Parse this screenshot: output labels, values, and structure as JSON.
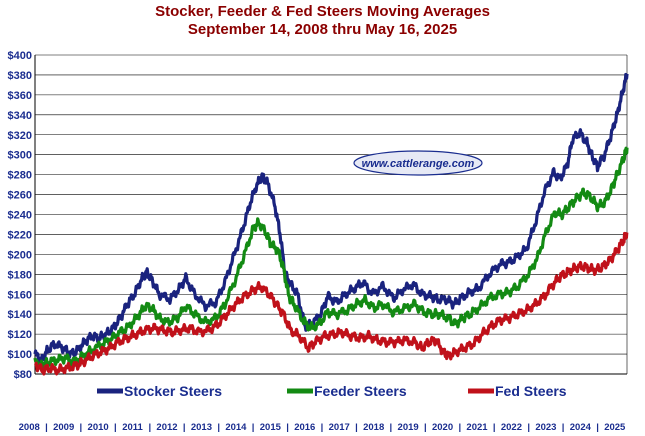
{
  "chart_data": {
    "type": "line",
    "title": "Stocker, Feeder & Fed Steers Moving Averages",
    "subtitle": "September 14, 2008 thru May 16, 2025",
    "watermark": "www.cattlerange.com",
    "ylim": [
      80,
      400
    ],
    "y_ticks": [
      "$80",
      "$100",
      "$120",
      "$140",
      "$160",
      "$180",
      "$200",
      "$220",
      "$240",
      "$260",
      "$280",
      "$300",
      "$320",
      "$340",
      "$360",
      "$380",
      "$400"
    ],
    "x_tick_labels": [
      "2008",
      "2009",
      "2010",
      "2011",
      "2012",
      "2013",
      "2014",
      "2015",
      "2016",
      "2017",
      "2018",
      "2019",
      "2020",
      "2021",
      "2022",
      "2023",
      "2024",
      "2025"
    ],
    "x_range": [
      2008.7,
      2025.38
    ],
    "grid": true,
    "legend_position": "bottom",
    "series": [
      {
        "name": "Stocker Steers",
        "color": "#1a237e",
        "points": [
          [
            2008.7,
            100
          ],
          [
            2008.9,
            94
          ],
          [
            2009.05,
            104
          ],
          [
            2009.25,
            110
          ],
          [
            2009.5,
            106
          ],
          [
            2009.7,
            100
          ],
          [
            2009.9,
            104
          ],
          [
            2010.1,
            112
          ],
          [
            2010.3,
            118
          ],
          [
            2010.5,
            116
          ],
          [
            2010.7,
            120
          ],
          [
            2010.9,
            126
          ],
          [
            2011.1,
            136
          ],
          [
            2011.3,
            150
          ],
          [
            2011.5,
            160
          ],
          [
            2011.7,
            175
          ],
          [
            2011.85,
            182
          ],
          [
            2012.0,
            174
          ],
          [
            2012.2,
            160
          ],
          [
            2012.5,
            155
          ],
          [
            2012.75,
            165
          ],
          [
            2012.95,
            176
          ],
          [
            2013.2,
            160
          ],
          [
            2013.5,
            148
          ],
          [
            2013.8,
            152
          ],
          [
            2014.05,
            172
          ],
          [
            2014.3,
            198
          ],
          [
            2014.55,
            225
          ],
          [
            2014.75,
            250
          ],
          [
            2014.95,
            270
          ],
          [
            2015.1,
            278
          ],
          [
            2015.25,
            272
          ],
          [
            2015.45,
            250
          ],
          [
            2015.6,
            222
          ],
          [
            2015.75,
            180
          ],
          [
            2015.9,
            170
          ],
          [
            2016.1,
            160
          ],
          [
            2016.3,
            128
          ],
          [
            2016.5,
            130
          ],
          [
            2016.75,
            140
          ],
          [
            2016.95,
            158
          ],
          [
            2017.2,
            152
          ],
          [
            2017.45,
            160
          ],
          [
            2017.7,
            166
          ],
          [
            2017.95,
            172
          ],
          [
            2018.2,
            160
          ],
          [
            2018.5,
            168
          ],
          [
            2018.8,
            156
          ],
          [
            2019.05,
            164
          ],
          [
            2019.35,
            170
          ],
          [
            2019.6,
            160
          ],
          [
            2019.85,
            158
          ],
          [
            2020.05,
            155
          ],
          [
            2020.3,
            155
          ],
          [
            2020.5,
            150
          ],
          [
            2020.7,
            156
          ],
          [
            2020.95,
            162
          ],
          [
            2021.2,
            166
          ],
          [
            2021.5,
            180
          ],
          [
            2021.8,
            190
          ],
          [
            2022.05,
            192
          ],
          [
            2022.3,
            198
          ],
          [
            2022.55,
            206
          ],
          [
            2022.8,
            232
          ],
          [
            2023.05,
            262
          ],
          [
            2023.3,
            282
          ],
          [
            2023.5,
            276
          ],
          [
            2023.7,
            290
          ],
          [
            2023.85,
            316
          ],
          [
            2024.05,
            322
          ],
          [
            2024.25,
            312
          ],
          [
            2024.4,
            298
          ],
          [
            2024.55,
            288
          ],
          [
            2024.75,
            300
          ],
          [
            2024.95,
            322
          ],
          [
            2025.1,
            340
          ],
          [
            2025.25,
            362
          ],
          [
            2025.38,
            381
          ]
        ]
      },
      {
        "name": "Feeder Steers",
        "color": "#138a13",
        "points": [
          [
            2008.7,
            92
          ],
          [
            2008.9,
            88
          ],
          [
            2009.05,
            92
          ],
          [
            2009.3,
            94
          ],
          [
            2009.55,
            96
          ],
          [
            2009.8,
            92
          ],
          [
            2010.05,
            98
          ],
          [
            2010.3,
            104
          ],
          [
            2010.6,
            110
          ],
          [
            2010.85,
            115
          ],
          [
            2011.1,
            122
          ],
          [
            2011.35,
            128
          ],
          [
            2011.6,
            138
          ],
          [
            2011.8,
            148
          ],
          [
            2012.0,
            146
          ],
          [
            2012.2,
            136
          ],
          [
            2012.45,
            132
          ],
          [
            2012.7,
            136
          ],
          [
            2012.95,
            148
          ],
          [
            2013.2,
            140
          ],
          [
            2013.5,
            132
          ],
          [
            2013.8,
            136
          ],
          [
            2014.05,
            150
          ],
          [
            2014.35,
            175
          ],
          [
            2014.6,
            200
          ],
          [
            2014.85,
            226
          ],
          [
            2015.0,
            232
          ],
          [
            2015.2,
            222
          ],
          [
            2015.35,
            210
          ],
          [
            2015.55,
            204
          ],
          [
            2015.7,
            186
          ],
          [
            2015.85,
            158
          ],
          [
            2016.0,
            150
          ],
          [
            2016.25,
            134
          ],
          [
            2016.45,
            126
          ],
          [
            2016.7,
            130
          ],
          [
            2016.95,
            142
          ],
          [
            2017.2,
            140
          ],
          [
            2017.5,
            144
          ],
          [
            2017.75,
            150
          ],
          [
            2018.0,
            154
          ],
          [
            2018.25,
            146
          ],
          [
            2018.5,
            150
          ],
          [
            2018.8,
            142
          ],
          [
            2019.1,
            146
          ],
          [
            2019.4,
            150
          ],
          [
            2019.65,
            142
          ],
          [
            2019.9,
            140
          ],
          [
            2020.1,
            140
          ],
          [
            2020.35,
            136
          ],
          [
            2020.55,
            130
          ],
          [
            2020.75,
            136
          ],
          [
            2020.95,
            140
          ],
          [
            2021.2,
            146
          ],
          [
            2021.5,
            156
          ],
          [
            2021.8,
            160
          ],
          [
            2022.05,
            162
          ],
          [
            2022.3,
            168
          ],
          [
            2022.6,
            180
          ],
          [
            2022.85,
            196
          ],
          [
            2023.1,
            222
          ],
          [
            2023.35,
            242
          ],
          [
            2023.55,
            240
          ],
          [
            2023.75,
            248
          ],
          [
            2023.95,
            256
          ],
          [
            2024.15,
            262
          ],
          [
            2024.35,
            258
          ],
          [
            2024.55,
            248
          ],
          [
            2024.75,
            252
          ],
          [
            2024.95,
            266
          ],
          [
            2025.1,
            280
          ],
          [
            2025.28,
            296
          ],
          [
            2025.38,
            307
          ]
        ]
      },
      {
        "name": "Fed Steers",
        "color": "#c0111a",
        "points": [
          [
            2008.7,
            90
          ],
          [
            2008.9,
            84
          ],
          [
            2009.1,
            86
          ],
          [
            2009.35,
            84
          ],
          [
            2009.6,
            86
          ],
          [
            2009.85,
            88
          ],
          [
            2010.05,
            92
          ],
          [
            2010.3,
            98
          ],
          [
            2010.55,
            102
          ],
          [
            2010.8,
            106
          ],
          [
            2011.05,
            112
          ],
          [
            2011.3,
            116
          ],
          [
            2011.55,
            120
          ],
          [
            2011.8,
            124
          ],
          [
            2012.05,
            126
          ],
          [
            2012.3,
            124
          ],
          [
            2012.55,
            122
          ],
          [
            2012.8,
            124
          ],
          [
            2013.05,
            126
          ],
          [
            2013.3,
            122
          ],
          [
            2013.6,
            124
          ],
          [
            2013.85,
            130
          ],
          [
            2014.1,
            140
          ],
          [
            2014.35,
            150
          ],
          [
            2014.6,
            158
          ],
          [
            2014.85,
            164
          ],
          [
            2015.05,
            168
          ],
          [
            2015.3,
            160
          ],
          [
            2015.5,
            150
          ],
          [
            2015.7,
            140
          ],
          [
            2015.9,
            124
          ],
          [
            2016.15,
            118
          ],
          [
            2016.4,
            106
          ],
          [
            2016.6,
            112
          ],
          [
            2016.85,
            118
          ],
          [
            2017.1,
            120
          ],
          [
            2017.35,
            122
          ],
          [
            2017.6,
            118
          ],
          [
            2017.85,
            116
          ],
          [
            2018.1,
            118
          ],
          [
            2018.35,
            114
          ],
          [
            2018.6,
            112
          ],
          [
            2018.85,
            112
          ],
          [
            2019.1,
            114
          ],
          [
            2019.4,
            112
          ],
          [
            2019.6,
            106
          ],
          [
            2019.8,
            112
          ],
          [
            2020.0,
            114
          ],
          [
            2020.2,
            102
          ],
          [
            2020.35,
            98
          ],
          [
            2020.55,
            102
          ],
          [
            2020.8,
            106
          ],
          [
            2021.05,
            110
          ],
          [
            2021.3,
            120
          ],
          [
            2021.55,
            128
          ],
          [
            2021.8,
            134
          ],
          [
            2022.05,
            136
          ],
          [
            2022.3,
            140
          ],
          [
            2022.55,
            144
          ],
          [
            2022.8,
            150
          ],
          [
            2023.05,
            158
          ],
          [
            2023.3,
            170
          ],
          [
            2023.5,
            178
          ],
          [
            2023.7,
            182
          ],
          [
            2023.9,
            186
          ],
          [
            2024.1,
            188
          ],
          [
            2024.3,
            186
          ],
          [
            2024.5,
            184
          ],
          [
            2024.7,
            188
          ],
          [
            2024.9,
            194
          ],
          [
            2025.1,
            204
          ],
          [
            2025.28,
            214
          ],
          [
            2025.38,
            222
          ]
        ]
      }
    ]
  }
}
